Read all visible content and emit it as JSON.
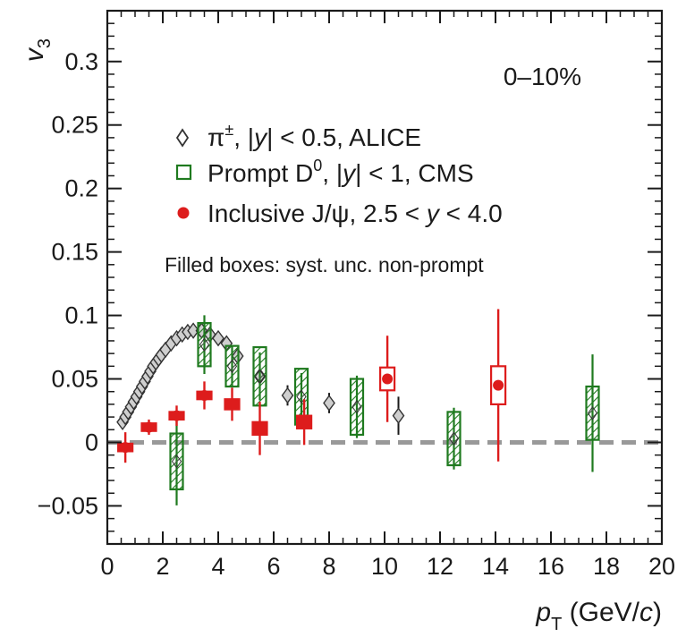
{
  "chart_data": {
    "type": "scatter",
    "xlabel": {
      "var": "p",
      "sub": "T",
      "unit": " (GeV/",
      "unit_var": "c",
      "unit_end": ")"
    },
    "ylabel": {
      "var": "v",
      "sub": "3"
    },
    "xlim": [
      0,
      20
    ],
    "ylim": [
      -0.08,
      0.34
    ],
    "xticks": [
      "0",
      "2",
      "4",
      "6",
      "8",
      "10",
      "12",
      "14",
      "16",
      "18",
      "20"
    ],
    "yticks": [
      "−0.05",
      "0",
      "0.05",
      "0.1",
      "0.15",
      "0.2",
      "0.25",
      "0.3"
    ],
    "ytick_values": [
      -0.05,
      0,
      0.05,
      0.1,
      0.15,
      0.2,
      0.25,
      0.3
    ],
    "xtick_values": [
      0,
      2,
      4,
      6,
      8,
      10,
      12,
      14,
      16,
      18,
      20
    ],
    "reference_line": {
      "y": 0,
      "style": "dashed",
      "color": "#999999"
    },
    "centrality": "0–10%",
    "legend_position": "upper-left",
    "note": "Filled boxes: syst. unc. non-prompt",
    "series": [
      {
        "name": "π±, |y| < 0.5, ALICE",
        "legend_parts": [
          "π",
          "±",
          ", |",
          "y",
          "| < 0.5, ALICE"
        ],
        "marker": "diamond",
        "color": "#333333",
        "fill": "#cfcfcf",
        "points": [
          {
            "x": 0.55,
            "y": 0.016
          },
          {
            "x": 0.65,
            "y": 0.02
          },
          {
            "x": 0.75,
            "y": 0.024
          },
          {
            "x": 0.85,
            "y": 0.028
          },
          {
            "x": 0.95,
            "y": 0.032
          },
          {
            "x": 1.05,
            "y": 0.036
          },
          {
            "x": 1.15,
            "y": 0.04
          },
          {
            "x": 1.25,
            "y": 0.044
          },
          {
            "x": 1.35,
            "y": 0.048
          },
          {
            "x": 1.45,
            "y": 0.052
          },
          {
            "x": 1.55,
            "y": 0.056
          },
          {
            "x": 1.65,
            "y": 0.06
          },
          {
            "x": 1.75,
            "y": 0.063
          },
          {
            "x": 1.85,
            "y": 0.066
          },
          {
            "x": 1.95,
            "y": 0.069
          },
          {
            "x": 2.1,
            "y": 0.073
          },
          {
            "x": 2.3,
            "y": 0.078
          },
          {
            "x": 2.5,
            "y": 0.082
          },
          {
            "x": 2.7,
            "y": 0.085
          },
          {
            "x": 2.9,
            "y": 0.087
          },
          {
            "x": 3.1,
            "y": 0.088
          },
          {
            "x": 3.4,
            "y": 0.088
          },
          {
            "x": 3.7,
            "y": 0.085
          },
          {
            "x": 4.0,
            "y": 0.082
          },
          {
            "x": 4.3,
            "y": 0.078
          },
          {
            "x": 4.7,
            "y": 0.068,
            "err": 0.006
          },
          {
            "x": 5.5,
            "y": 0.052,
            "err": 0.007
          },
          {
            "x": 6.5,
            "y": 0.037,
            "err": 0.008
          },
          {
            "x": 8.0,
            "y": 0.031,
            "err": 0.008
          },
          {
            "x": 10.5,
            "y": 0.021,
            "err": 0.015
          }
        ]
      },
      {
        "name": "Prompt D0, |y| < 1, CMS",
        "legend_parts": [
          "Prompt D",
          "0",
          ", |",
          "y",
          "| < 1, CMS"
        ],
        "marker": "open-square",
        "color": "#1f7a1f",
        "points": [
          {
            "x": 2.5,
            "y": -0.015,
            "err": 0.028,
            "syst": 0.022
          },
          {
            "x": 3.5,
            "y": 0.077,
            "err": 0.018,
            "syst": 0.017
          },
          {
            "x": 4.5,
            "y": 0.06,
            "err": 0.012,
            "syst": 0.016
          },
          {
            "x": 5.5,
            "y": 0.052,
            "err": 0.012,
            "syst": 0.023
          },
          {
            "x": 7.0,
            "y": 0.036,
            "err": 0.012,
            "syst": 0.022
          },
          {
            "x": 9.0,
            "y": 0.028,
            "err": 0.018,
            "syst": 0.022
          },
          {
            "x": 12.5,
            "y": 0.003,
            "err": 0.018,
            "syst": 0.021
          },
          {
            "x": 17.5,
            "y": 0.023,
            "err": 0.04,
            "syst": 0.021
          }
        ]
      },
      {
        "name": "Inclusive J/ψ, 2.5 < y < 4.0",
        "legend_parts": [
          "Inclusive J/ψ, 2.5 < ",
          "y",
          " < 4.0"
        ],
        "marker": "filled-circle",
        "color": "#dd1c1c",
        "points": [
          {
            "x": 0.65,
            "y": -0.004,
            "err": 0.012,
            "syst": 0.003
          },
          {
            "x": 1.5,
            "y": 0.012,
            "err": 0.006,
            "syst": 0.003
          },
          {
            "x": 2.5,
            "y": 0.021,
            "err": 0.008,
            "syst": 0.003
          },
          {
            "x": 3.5,
            "y": 0.037,
            "err": 0.011,
            "syst": 0.003
          },
          {
            "x": 4.5,
            "y": 0.03,
            "err": 0.013,
            "syst": 0.004
          },
          {
            "x": 5.5,
            "y": 0.011,
            "err": 0.021,
            "syst": 0.005
          },
          {
            "x": 7.1,
            "y": 0.016,
            "err": 0.018,
            "syst": 0.005
          },
          {
            "x": 10.1,
            "y": 0.05,
            "err": 0.034,
            "syst": 0.009
          },
          {
            "x": 14.1,
            "y": 0.045,
            "err": 0.06,
            "syst": 0.015
          }
        ]
      }
    ]
  }
}
